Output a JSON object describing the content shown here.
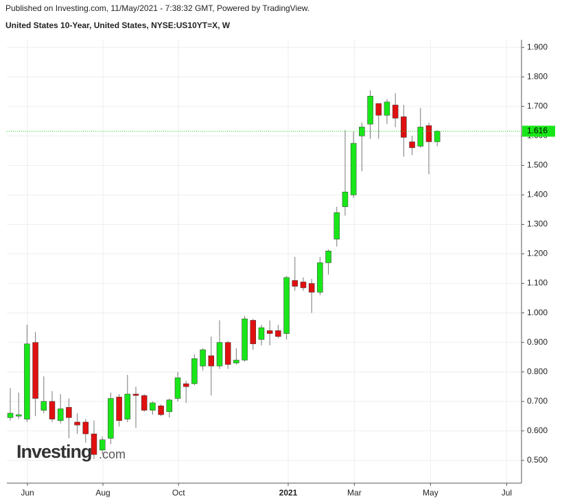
{
  "header": {
    "published": "Published on Investing.com, 11/May/2021 - 7:38:32 GMT, Powered by TradingView."
  },
  "chart_data": {
    "type": "candlestick",
    "title": "United States 10-Year, United States, NYSE:US10YT=X, W",
    "categories": [
      null,
      null,
      null,
      null,
      null,
      null,
      null,
      null,
      null,
      null,
      null,
      null,
      null,
      null,
      null,
      null,
      null,
      null,
      null,
      null,
      null,
      null,
      null,
      null,
      null,
      null,
      null,
      null,
      null,
      null,
      null,
      null,
      null,
      null,
      null,
      null,
      null,
      null,
      null,
      null,
      null,
      null,
      null,
      null,
      null,
      null,
      null,
      null,
      null,
      null,
      null,
      null
    ],
    "open": [
      0.645,
      0.65,
      0.64,
      0.9,
      0.67,
      0.7,
      0.635,
      0.68,
      0.63,
      0.63,
      0.59,
      0.535,
      0.575,
      0.715,
      0.64,
      0.725,
      0.72,
      0.67,
      0.685,
      0.665,
      0.71,
      0.76,
      0.76,
      0.82,
      0.855,
      0.82,
      0.9,
      0.83,
      0.84,
      0.975,
      0.91,
      0.94,
      0.94,
      0.93,
      1.11,
      1.105,
      1.1,
      1.07,
      1.17,
      1.25,
      1.36,
      1.4,
      1.6,
      1.64,
      1.71,
      1.67,
      1.705,
      1.665,
      1.58,
      1.565,
      1.635,
      1.58
    ],
    "high": [
      0.745,
      0.73,
      0.96,
      0.935,
      0.785,
      0.735,
      0.725,
      0.71,
      0.66,
      0.64,
      0.635,
      0.58,
      0.73,
      0.725,
      0.79,
      0.75,
      0.725,
      0.7,
      0.69,
      0.71,
      0.8,
      0.77,
      0.86,
      0.88,
      0.92,
      0.975,
      0.905,
      0.88,
      0.99,
      0.98,
      0.96,
      0.975,
      0.96,
      1.125,
      1.19,
      1.12,
      1.115,
      1.19,
      1.215,
      1.36,
      1.62,
      1.615,
      1.645,
      1.755,
      1.71,
      1.725,
      1.745,
      1.705,
      1.6,
      1.695,
      1.645,
      1.62
    ],
    "low": [
      0.635,
      0.64,
      0.63,
      0.65,
      0.66,
      0.63,
      0.625,
      0.575,
      0.59,
      0.56,
      0.505,
      0.52,
      0.555,
      0.615,
      0.63,
      0.61,
      0.665,
      0.655,
      0.65,
      0.645,
      0.7,
      0.695,
      0.755,
      0.805,
      0.72,
      0.81,
      0.81,
      0.825,
      0.835,
      0.875,
      0.89,
      0.89,
      0.915,
      0.91,
      1.075,
      1.075,
      1.0,
      1.06,
      1.13,
      1.225,
      1.33,
      1.39,
      1.48,
      1.59,
      1.59,
      1.64,
      1.63,
      1.53,
      1.535,
      1.56,
      1.47,
      1.565
    ],
    "close": [
      0.66,
      0.655,
      0.895,
      0.71,
      0.7,
      0.64,
      0.675,
      0.645,
      0.62,
      0.59,
      0.52,
      0.57,
      0.71,
      0.635,
      0.725,
      0.72,
      0.67,
      0.695,
      0.655,
      0.705,
      0.78,
      0.75,
      0.845,
      0.875,
      0.82,
      0.9,
      0.825,
      0.84,
      0.98,
      0.895,
      0.95,
      0.93,
      0.92,
      1.12,
      1.09,
      1.085,
      1.07,
      1.17,
      1.21,
      1.34,
      1.41,
      1.575,
      1.63,
      1.735,
      1.67,
      1.715,
      1.66,
      1.595,
      1.56,
      1.63,
      1.58,
      1.616
    ],
    "up_color": "#19e619",
    "down_color": "#e01010",
    "last_price": 1.616,
    "xlim": [
      -0.41,
      61.07
    ],
    "xticks": [
      {
        "value": 2.05,
        "label": "Jun"
      },
      {
        "value": 11.07,
        "label": "Aug"
      },
      {
        "value": 20.1,
        "label": "Oct"
      },
      {
        "value": 33.2,
        "label": "2021"
      },
      {
        "value": 41.1,
        "label": "Mar"
      },
      {
        "value": 50.2,
        "label": "May"
      },
      {
        "value": 59.3,
        "label": "Jul"
      }
    ],
    "ylim": [
      0.423,
      1.926
    ],
    "yticks": [
      {
        "value": 0.5,
        "label": "0.500"
      },
      {
        "value": 0.6,
        "label": "0.600"
      },
      {
        "value": 0.7,
        "label": "0.700"
      },
      {
        "value": 0.8,
        "label": "0.800"
      },
      {
        "value": 0.9,
        "label": "0.900"
      },
      {
        "value": 1.0,
        "label": "1.000"
      },
      {
        "value": 1.1,
        "label": "1.100"
      },
      {
        "value": 1.2,
        "label": "1.200"
      },
      {
        "value": 1.3,
        "label": "1.300"
      },
      {
        "value": 1.4,
        "label": "1.400"
      },
      {
        "value": 1.5,
        "label": "1.500"
      },
      {
        "value": 1.6,
        "label": "1.600"
      },
      {
        "value": 1.7,
        "label": "1.700"
      },
      {
        "value": 1.8,
        "label": "1.800"
      },
      {
        "value": 1.9,
        "label": "1.900"
      }
    ],
    "grid": true,
    "watermark": {
      "brand": "Investing",
      "suffix": ".com"
    }
  }
}
